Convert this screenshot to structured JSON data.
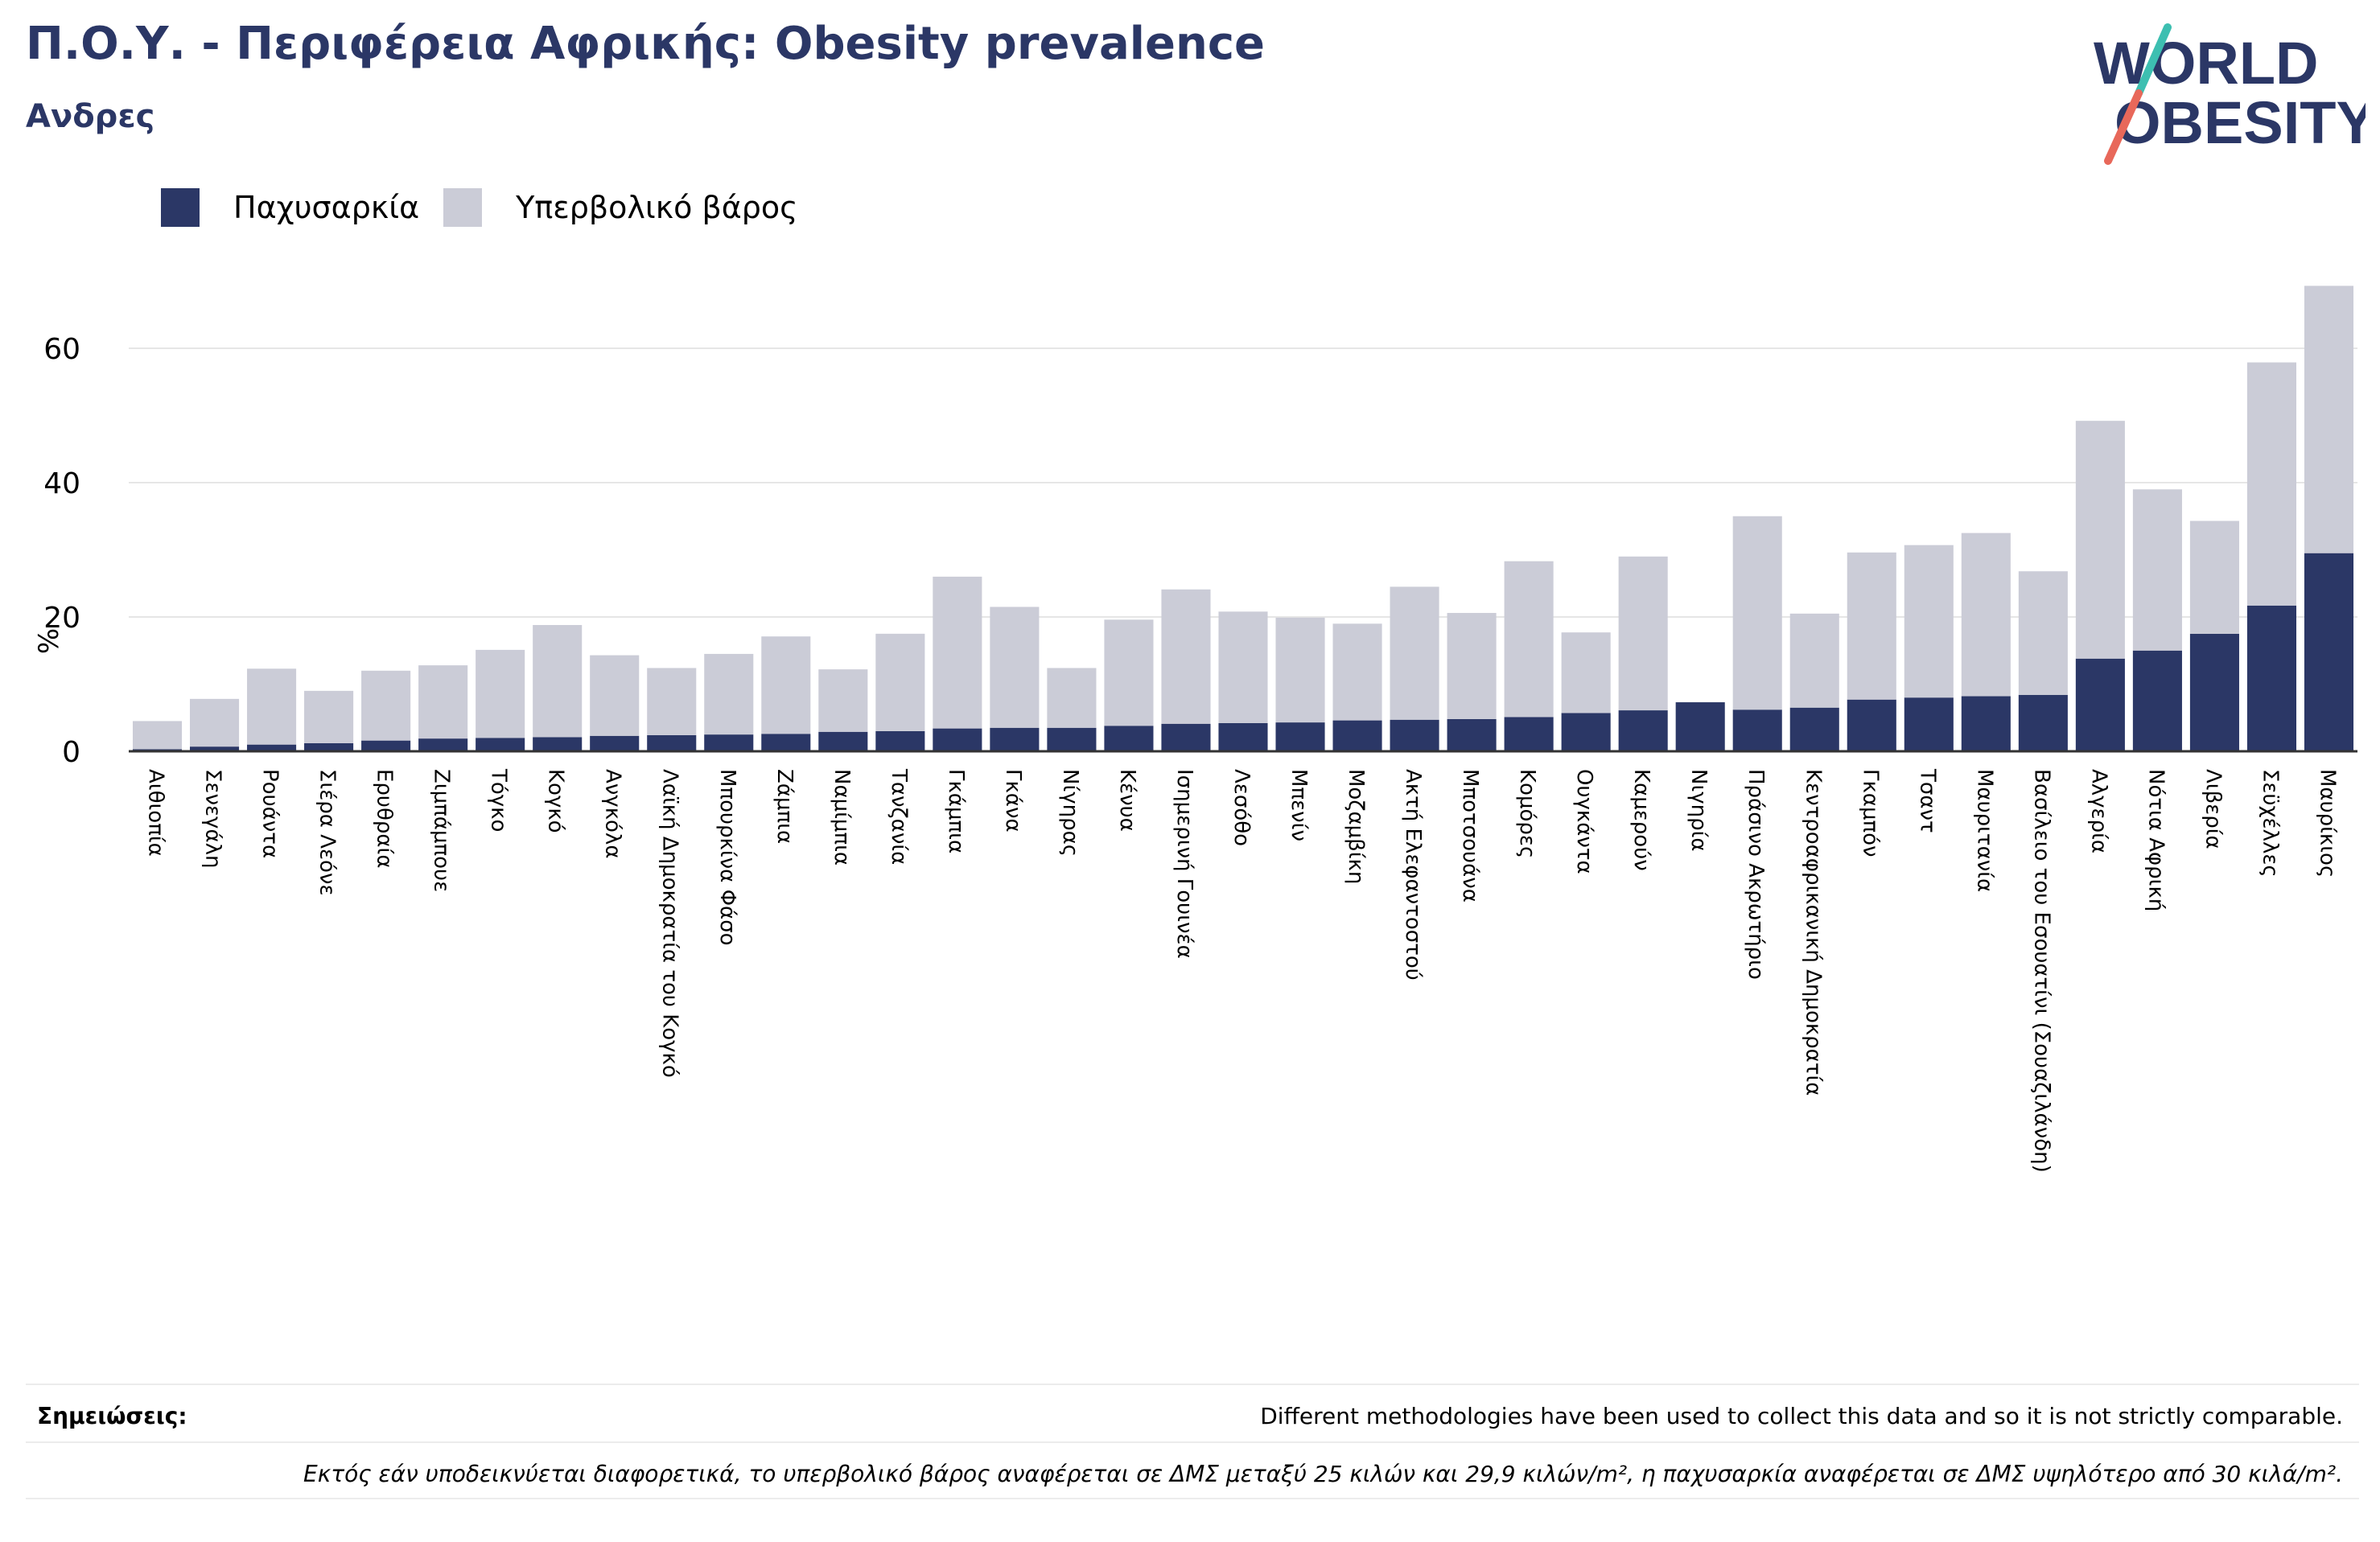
{
  "title": "Π.Ο.Υ. - Περιφέρεια Αφρικής: Obesity prevalence",
  "subtitle": "Ανδρες",
  "logo": {
    "line1": "WORLD",
    "line2": "OBESITY"
  },
  "colors": {
    "obesity": "#2b3766",
    "overweight": "#cbccd7",
    "title": "#2b3766",
    "logo_teal": "#3dbfb1",
    "logo_red": "#e8685a"
  },
  "legend": [
    {
      "label": "Παχυσαρκία",
      "color": "#2b3766"
    },
    {
      "label": "Υπερβολικό βάρος",
      "color": "#cbccd7"
    }
  ],
  "chart_data": {
    "type": "bar",
    "stacked": true,
    "ylabel": "%",
    "ylim": [
      0,
      72
    ],
    "yticks": [
      0,
      20,
      40,
      60
    ],
    "grid": true,
    "legend_position": "top-left",
    "categories": [
      "Αιθιοπία",
      "Σενεγάλη",
      "Ρουάντα",
      "Σιέρα Λεόνε",
      "Ερυθραία",
      "Ζιμπάμπουε",
      "Τόγκο",
      "Κογκό",
      "Ανγκόλα",
      "Λαϊκή Δημοκρατία του Κογκό",
      "Μπουρκίνα Φάσο",
      "Ζάμπια",
      "Ναμίμπια",
      "Τανζανία",
      "Γκάμπια",
      "Γκάνα",
      "Νίγηρας",
      "Κένυα",
      "Ισημερινή Γουινέα",
      "Λεσόθο",
      "Μπενίν",
      "Μοζαμβίκη",
      "Ακτή Ελεφαντοστού",
      "Μποτσουάνα",
      "Κομόρες",
      "Ουγκάντα",
      "Καμερούν",
      "Νιγηρία",
      "Πράσινο Ακρωτήριο",
      "Κεντροαφρικανική Δημοκρατία",
      "Γκαμπόν",
      "Τσαντ",
      "Μαυριτανία",
      "Βασίλειο του Εσουατίνι (Σουαζιλάνδη)",
      "Αλγερία",
      "Νότια Αφρική",
      "Λιβερία",
      "Σεϋχέλλες",
      "Μαυρίκιος"
    ],
    "series": [
      {
        "name": "Παχυσαρκία",
        "values": [
          0.3,
          0.7,
          1.0,
          1.2,
          1.6,
          1.9,
          2.0,
          2.1,
          2.3,
          2.4,
          2.5,
          2.6,
          2.9,
          3.0,
          3.4,
          3.5,
          3.5,
          3.8,
          4.1,
          4.2,
          4.3,
          4.6,
          4.7,
          4.8,
          5.1,
          5.7,
          6.1,
          7.3,
          6.2,
          6.5,
          7.7,
          8.0,
          8.2,
          8.4,
          13.8,
          15.0,
          17.5,
          21.7,
          29.5
        ]
      },
      {
        "name": "Υπερβολικό βάρος",
        "values": [
          4.2,
          7.1,
          11.3,
          7.8,
          10.4,
          10.9,
          13.1,
          16.7,
          12.0,
          10.0,
          12.0,
          14.5,
          9.3,
          14.5,
          22.6,
          18.0,
          8.9,
          15.8,
          20.0,
          16.6,
          15.6,
          14.4,
          19.8,
          15.8,
          23.2,
          12.0,
          22.9,
          0.0,
          28.8,
          14.0,
          21.9,
          22.7,
          24.3,
          18.4,
          35.4,
          24.0,
          16.8,
          36.2,
          39.8
        ]
      }
    ]
  },
  "notes": {
    "label": "Σημειώσεις:",
    "text": "Different methodologies have been used to collect this data and so it is not strictly comparable.",
    "definition": "Εκτός εάν υποδεικνύεται διαφορετικά, το υπερβολικό βάρος αναφέρεται σε ΔΜΣ μεταξύ 25 κιλών και 29,9 κιλών/m², η παχυσαρκία αναφέρεται σε ΔΜΣ υψηλότερο από 30 κιλά/m²."
  }
}
